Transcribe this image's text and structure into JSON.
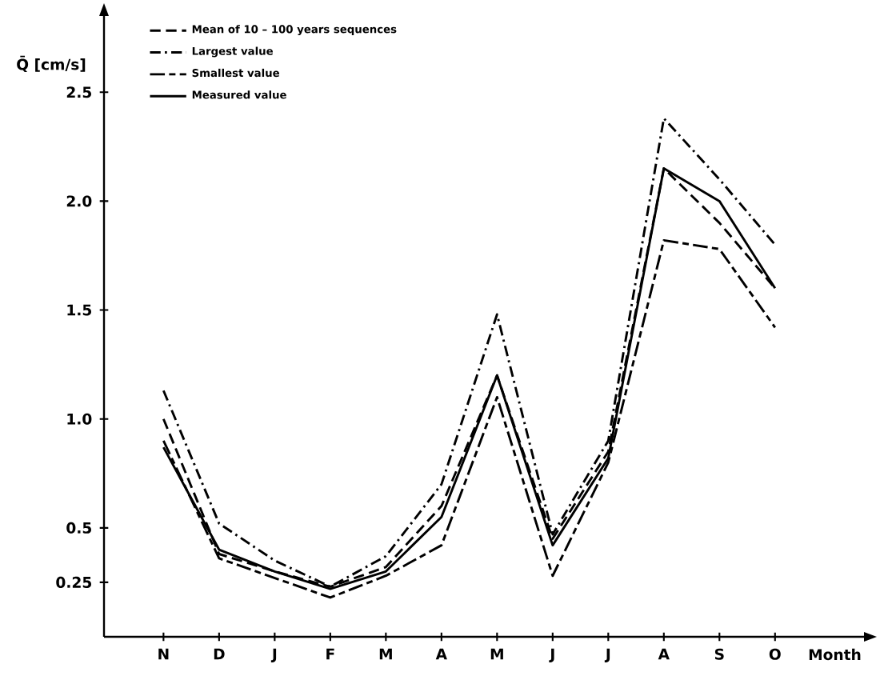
{
  "chart_data": {
    "type": "line",
    "xlabel": "Month",
    "ylabel": "Q̄ [cm/s]",
    "categories": [
      "N",
      "D",
      "J",
      "F",
      "M",
      "A",
      "M",
      "J",
      "J",
      "A",
      "S",
      "O"
    ],
    "series": [
      {
        "name": "Mean of 10 – 100 years sequences",
        "color": "#000000",
        "line_style": "dashed",
        "values": [
          1.0,
          0.38,
          0.3,
          0.23,
          0.32,
          0.6,
          1.2,
          0.45,
          0.85,
          2.15,
          1.9,
          1.6
        ]
      },
      {
        "name": "Largest value",
        "color": "#000000",
        "line_style": "dashdot",
        "values": [
          1.13,
          0.52,
          0.35,
          0.23,
          0.37,
          0.7,
          1.48,
          0.47,
          0.9,
          2.38,
          2.1,
          1.8
        ]
      },
      {
        "name": "Smallest value",
        "color": "#000000",
        "line_style": "longdashdash",
        "values": [
          0.9,
          0.36,
          0.27,
          0.18,
          0.28,
          0.42,
          1.1,
          0.28,
          0.8,
          1.82,
          1.78,
          1.42
        ]
      },
      {
        "name": "Measured value",
        "color": "#000000",
        "line_style": "solid",
        "values": [
          0.87,
          0.4,
          0.3,
          0.22,
          0.3,
          0.55,
          1.2,
          0.42,
          0.82,
          2.15,
          2.0,
          1.6
        ]
      }
    ],
    "ylim": [
      0,
      2.85
    ],
    "yticks": [
      {
        "value": 0.25,
        "label": "0.25"
      },
      {
        "value": 0.5,
        "label": "0.5"
      },
      {
        "value": 1.0,
        "label": "1.0"
      },
      {
        "value": 1.5,
        "label": "1.5"
      },
      {
        "value": 2.0,
        "label": "2.0"
      },
      {
        "value": 2.5,
        "label": "2.5"
      }
    ],
    "legend": "top left",
    "grid": false,
    "marker": "none"
  }
}
